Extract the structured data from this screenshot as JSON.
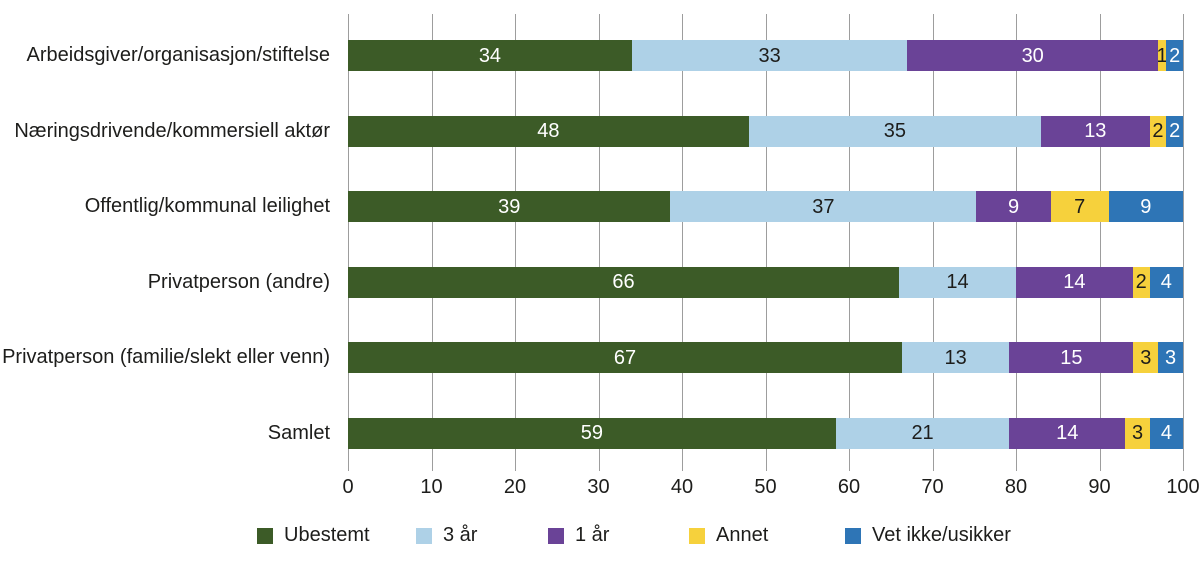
{
  "chart_data": {
    "type": "bar",
    "orientation": "horizontal-stacked",
    "title": "",
    "xlabel": "",
    "ylabel": "",
    "xlim": [
      0,
      100
    ],
    "grid": "vertical",
    "legend_position": "bottom",
    "categories": [
      "Arbeidsgiver/organisasjon/stiftelse",
      "Næringsdrivende/kommersiell aktør",
      "Offentlig/kommunal leilighet",
      "Privatperson (andre)",
      "Privatperson (familie/slekt eller venn)",
      "Samlet"
    ],
    "series": [
      {
        "name": "Ubestemt",
        "color": "#3c5b27",
        "label_color": "#ffffff",
        "values": [
          34,
          48,
          39,
          66,
          67,
          59
        ]
      },
      {
        "name": "3 år",
        "color": "#aed1e7",
        "label_color": "#1d1d1b",
        "values": [
          33,
          35,
          37,
          14,
          13,
          21
        ]
      },
      {
        "name": "1 år",
        "color": "#6a4397",
        "label_color": "#ffffff",
        "values": [
          30,
          13,
          9,
          14,
          15,
          14
        ]
      },
      {
        "name": "Annet",
        "color": "#f6d13c",
        "label_color": "#1d1d1b",
        "values": [
          1,
          2,
          7,
          2,
          3,
          3
        ]
      },
      {
        "name": "Vet ikke/usikker",
        "color": "#2e75b6",
        "label_color": "#ffffff",
        "values": [
          2,
          2,
          9,
          4,
          3,
          4
        ]
      }
    ],
    "x_ticks": [
      0,
      10,
      20,
      30,
      40,
      50,
      60,
      70,
      80,
      90,
      100
    ]
  },
  "style": {
    "grid_color": "#9d9d9d",
    "text_color": "#1d1d1b",
    "background": "#ffffff"
  }
}
